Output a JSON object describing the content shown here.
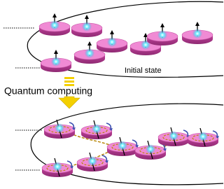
{
  "labels": {
    "initial": "Initial state",
    "process": "Quantum computing"
  }
}
